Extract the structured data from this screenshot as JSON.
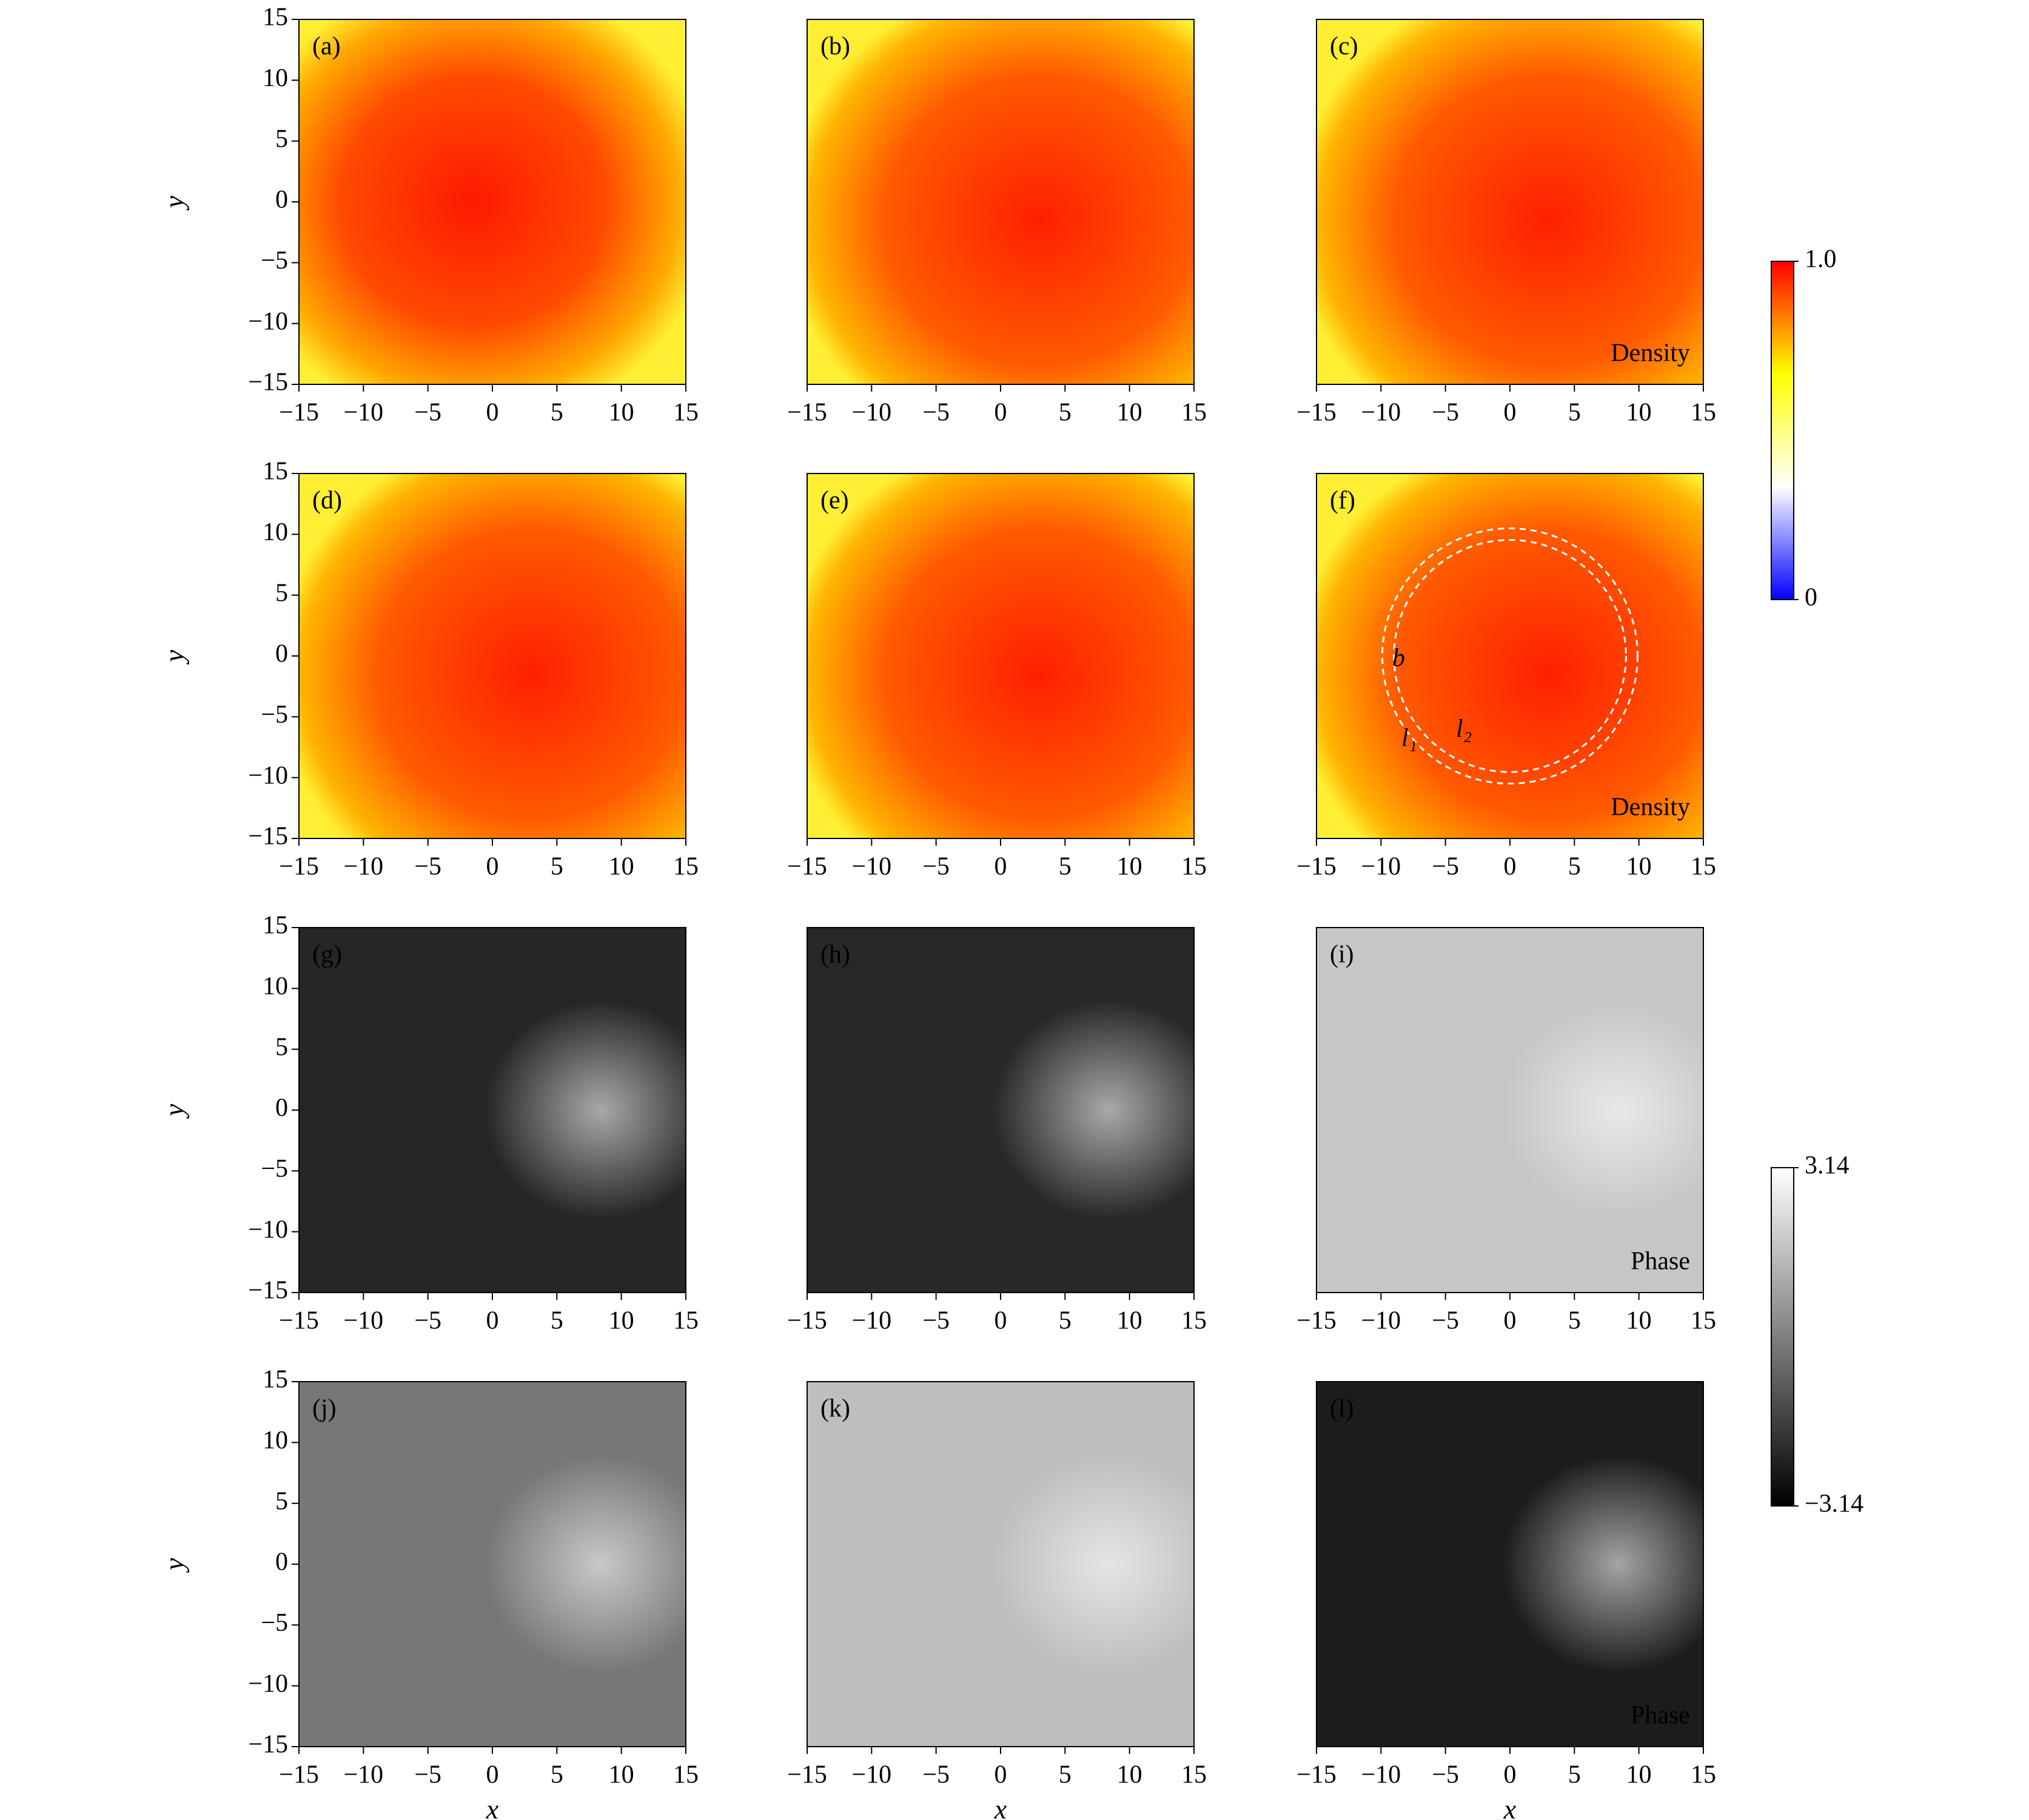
{
  "chart_data": [
    {
      "type": "heatmap",
      "title": "(a)",
      "xlim": [
        -15,
        15
      ],
      "ylim": [
        -15,
        15
      ],
      "xticks": [
        {
          "value": -15,
          "label": "−15"
        },
        {
          "value": -10,
          "label": "−10"
        },
        {
          "value": -5,
          "label": "−5"
        },
        0,
        5,
        10,
        15
      ],
      "yticks": [
        {
          "value": -15,
          "label": "−15"
        },
        {
          "value": -10,
          "label": "−10"
        },
        {
          "value": -5,
          "label": "−5"
        },
        0,
        5,
        10,
        15
      ],
      "y_label": "y"
    },
    {
      "type": "heatmap",
      "title": "(b)",
      "xlim": [
        -15,
        15
      ],
      "ylim": [
        -15,
        15
      ],
      "xticks": [
        {
          "value": -15,
          "label": "−15"
        },
        {
          "value": -10,
          "label": "−10"
        },
        {
          "value": -5,
          "label": "−5"
        },
        0,
        5,
        10,
        15
      ]
    },
    {
      "type": "heatmap",
      "title": "(c)",
      "xlim": [
        -15,
        15
      ],
      "ylim": [
        -15,
        15
      ],
      "xticks": [
        {
          "value": -15,
          "label": "−15"
        },
        {
          "value": -10,
          "label": "−10"
        },
        {
          "value": -5,
          "label": "−5"
        },
        0,
        5,
        10,
        15
      ],
      "annotation": "Density"
    },
    {
      "type": "heatmap",
      "title": "(d)",
      "xlim": [
        -15,
        15
      ],
      "ylim": [
        -15,
        15
      ],
      "xticks": [
        {
          "value": -15,
          "label": "−15"
        },
        {
          "value": -10,
          "label": "−10"
        },
        {
          "value": -5,
          "label": "−5"
        },
        0,
        5,
        10,
        15
      ],
      "yticks": [
        {
          "value": -15,
          "label": "−15"
        },
        {
          "value": -10,
          "label": "−10"
        },
        {
          "value": -5,
          "label": "−5"
        },
        0,
        5,
        10,
        15
      ],
      "y_label": "y"
    },
    {
      "type": "heatmap",
      "title": "(e)",
      "xlim": [
        -15,
        15
      ],
      "ylim": [
        -15,
        15
      ],
      "xticks": [
        {
          "value": -15,
          "label": "−15"
        },
        {
          "value": -10,
          "label": "−10"
        },
        {
          "value": -5,
          "label": "−5"
        },
        0,
        5,
        10,
        15
      ]
    },
    {
      "type": "heatmap",
      "title": "(f)",
      "xlim": [
        -15,
        15
      ],
      "ylim": [
        -15,
        15
      ],
      "xticks": [
        {
          "value": -15,
          "label": "−15"
        },
        {
          "value": -10,
          "label": "−10"
        },
        {
          "value": -5,
          "label": "−5"
        },
        0,
        5,
        10,
        15
      ],
      "annotation": "Density",
      "labels": [
        "b",
        "l₁",
        "l₂"
      ]
    },
    {
      "type": "heatmap",
      "title": "(g)",
      "xlim": [
        -15,
        15
      ],
      "ylim": [
        -15,
        15
      ],
      "xticks": [
        {
          "value": -15,
          "label": "−15"
        },
        {
          "value": -10,
          "label": "−10"
        },
        {
          "value": -5,
          "label": "−5"
        },
        0,
        5,
        10,
        15
      ],
      "yticks": [
        {
          "value": -15,
          "label": "−15"
        },
        {
          "value": -10,
          "label": "−10"
        },
        {
          "value": -5,
          "label": "−5"
        },
        0,
        5,
        10,
        15
      ],
      "y_label": "y"
    },
    {
      "type": "heatmap",
      "title": "(h)",
      "xlim": [
        -15,
        15
      ],
      "ylim": [
        -15,
        15
      ],
      "xticks": [
        {
          "value": -15,
          "label": "−15"
        },
        {
          "value": -10,
          "label": "−10"
        },
        {
          "value": -5,
          "label": "−5"
        },
        0,
        5,
        10,
        15
      ]
    },
    {
      "type": "heatmap",
      "title": "(i)",
      "xlim": [
        -15,
        15
      ],
      "ylim": [
        -15,
        15
      ],
      "xticks": [
        {
          "value": -15,
          "label": "−15"
        },
        {
          "value": -10,
          "label": "−10"
        },
        {
          "value": -5,
          "label": "−5"
        },
        0,
        5,
        10,
        15
      ],
      "annotation": "Phase"
    },
    {
      "type": "heatmap",
      "title": "(j)",
      "xlim": [
        -15,
        15
      ],
      "ylim": [
        -15,
        15
      ],
      "xticks": [
        {
          "value": -15,
          "label": "−15"
        },
        {
          "value": -10,
          "label": "−10"
        },
        {
          "value": -5,
          "label": "−5"
        },
        0,
        5,
        10,
        15
      ],
      "yticks": [
        {
          "value": -15,
          "label": "−15"
        },
        {
          "value": -10,
          "label": "−10"
        },
        {
          "value": -5,
          "label": "−5"
        },
        0,
        5,
        10,
        15
      ],
      "x_label": "x",
      "y_label": "y"
    },
    {
      "type": "heatmap",
      "title": "(k)",
      "xlim": [
        -15,
        15
      ],
      "ylim": [
        -15,
        15
      ],
      "xticks": [
        {
          "value": -15,
          "label": "−15"
        },
        {
          "value": -10,
          "label": "−10"
        },
        {
          "value": -5,
          "label": "−5"
        },
        0,
        5,
        10,
        15
      ],
      "x_label": "x"
    },
    {
      "type": "heatmap",
      "title": "(l)",
      "xlim": [
        -15,
        15
      ],
      "ylim": [
        -15,
        15
      ],
      "xticks": [
        {
          "value": -15,
          "label": "−15"
        },
        {
          "value": -10,
          "label": "−10"
        },
        {
          "value": -5,
          "label": "−5"
        },
        0,
        5,
        10,
        15
      ],
      "x_label": "x",
      "annotation": "Phase"
    },
    {
      "type": "colorbar",
      "colors": [
        "#0000ff",
        "#ffffff",
        "#ffff00",
        "#ff0000"
      ],
      "ylim": [
        0,
        1
      ],
      "yticks": [
        0,
        {
          "value": 1,
          "label": "1.0"
        }
      ]
    },
    {
      "type": "colorbar",
      "colors": [
        "#000000",
        "#ffffff"
      ],
      "ylim": [
        -3.14,
        3.14
      ],
      "yticks": [
        {
          "value": -3.14,
          "label": "−3.14"
        },
        3.14
      ]
    }
  ]
}
